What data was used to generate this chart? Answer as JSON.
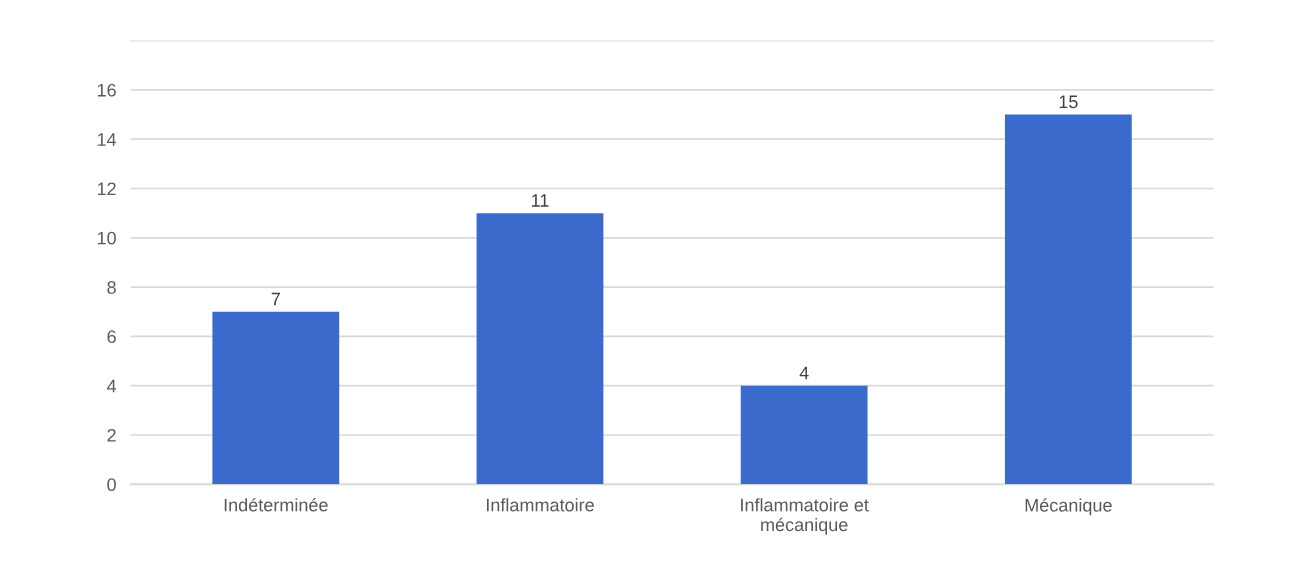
{
  "chart_data": {
    "type": "bar",
    "categories": [
      "Indéterminée",
      "Inflammatoire",
      "Inflammatoire et\nmécanique",
      "Mécanique"
    ],
    "values": [
      7,
      11,
      4,
      15
    ],
    "color": "#3a6acb",
    "ylim": [
      0,
      18
    ],
    "yticks": [
      0,
      2,
      4,
      6,
      8,
      10,
      12,
      14,
      16,
      {
        "value": 18,
        "label": null
      }
    ],
    "grid": "y",
    "data_labels": true
  }
}
